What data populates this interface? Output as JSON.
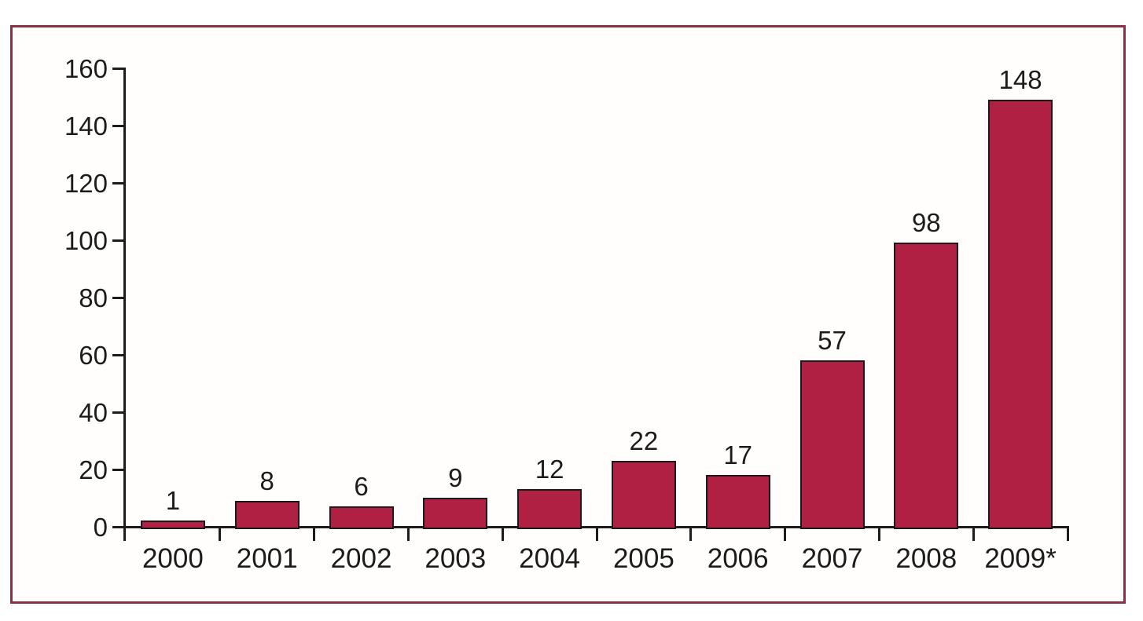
{
  "figure": {
    "frame_color": "#8C3046",
    "background_color": "#FFFFFF"
  },
  "chart_data": {
    "type": "bar",
    "title": "",
    "xlabel": "",
    "ylabel": "",
    "categories": [
      "2000",
      "2001",
      "2002",
      "2003",
      "2004",
      "2005",
      "2006",
      "2007",
      "2008",
      "2009*"
    ],
    "values": [
      1,
      8,
      6,
      9,
      12,
      22,
      17,
      57,
      98,
      148
    ],
    "bar_labels": [
      "1",
      "8",
      "6",
      "9",
      "12",
      "22",
      "17",
      "57",
      "98",
      "148"
    ],
    "yticks": [
      0,
      20,
      40,
      60,
      80,
      100,
      120,
      140,
      160
    ],
    "ytick_labels": [
      "0",
      "20",
      "40",
      "60",
      "80",
      "100",
      "120",
      "140",
      "160"
    ],
    "ylim": [
      0,
      160
    ],
    "grid": false,
    "legend_position": "none",
    "bar_color": "#B02042",
    "bar_border_color": "#1A1A1A",
    "axis_color": "#1C1C1C",
    "text_color": "#1C1C1C"
  }
}
